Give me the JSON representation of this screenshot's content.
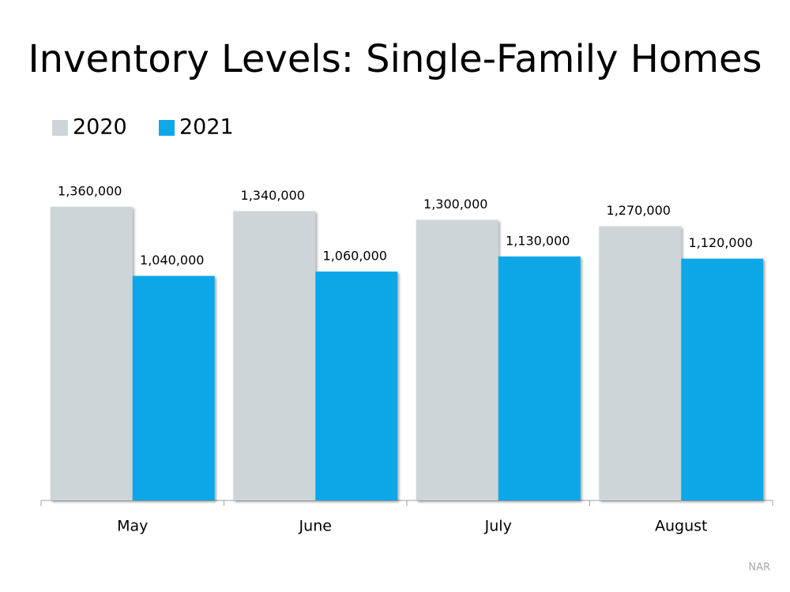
{
  "chart_data": {
    "type": "bar",
    "title": "Inventory Levels: Single-Family Homes",
    "categories": [
      "May",
      "June",
      "July",
      "August"
    ],
    "series": [
      {
        "name": "2020",
        "color": "#cdd5d8",
        "values": [
          1360000,
          1340000,
          1300000,
          1270000
        ],
        "value_labels": [
          "1,360,000",
          "1,340,000",
          "1,300,000",
          "1,270,000"
        ]
      },
      {
        "name": "2021",
        "color": "#0ea7e8",
        "values": [
          1040000,
          1060000,
          1130000,
          1120000
        ],
        "value_labels": [
          "1,040,000",
          "1,060,000",
          "1,130,000",
          "1,120,000"
        ]
      }
    ],
    "source": "NAR"
  }
}
